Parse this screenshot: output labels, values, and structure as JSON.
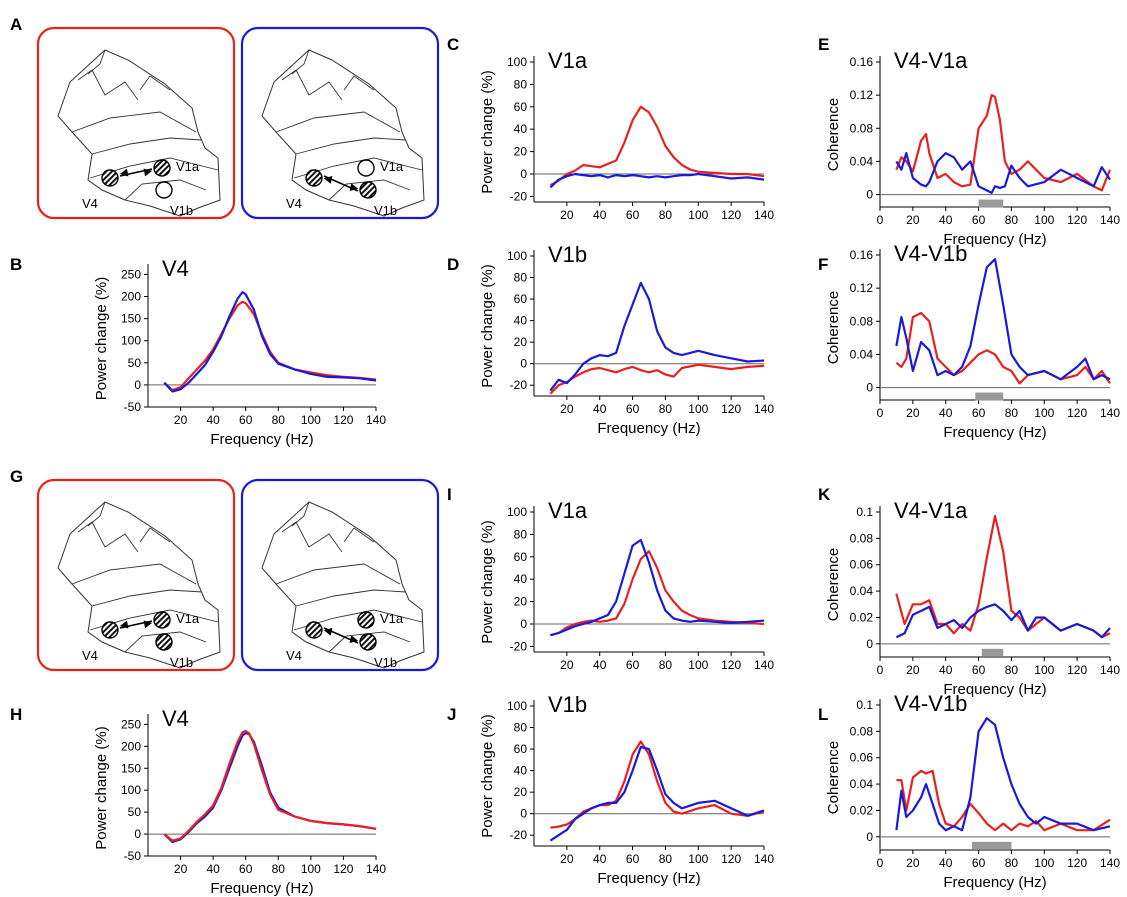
{
  "colors": {
    "red": "#e8211f",
    "blue": "#1a1adb",
    "gray": "#9a9a9a",
    "outline": "#333333"
  },
  "diagram_labels": {
    "v1a": "V1a",
    "v1b": "V1b",
    "v4": "V4"
  },
  "diagrams": [
    {
      "letter": "A",
      "left_state": "V1a-striped V1b-open",
      "right_state": "V1a-open V1b-striped"
    },
    {
      "letter": "G",
      "left_state": "both-striped",
      "right_state": "both-striped"
    }
  ],
  "chart_data": [
    {
      "letter": "B",
      "type": "line",
      "title": "V4",
      "xlabel": "Frequency (Hz)",
      "ylabel": "Power change (%)",
      "xlim": [
        0,
        140
      ],
      "ylim": [
        -50,
        260
      ],
      "xticks": [
        20,
        40,
        60,
        80,
        100,
        120,
        140
      ],
      "yticks": [
        -50,
        0,
        50,
        100,
        150,
        200,
        250
      ],
      "zero_line": true,
      "x": [
        10,
        15,
        20,
        25,
        30,
        35,
        40,
        45,
        50,
        55,
        58,
        60,
        65,
        70,
        75,
        80,
        90,
        100,
        110,
        120,
        130,
        140
      ],
      "series": [
        {
          "color": "red",
          "values": [
            5,
            -12,
            -5,
            15,
            35,
            55,
            80,
            115,
            150,
            180,
            188,
            185,
            160,
            115,
            75,
            50,
            35,
            28,
            22,
            18,
            16,
            12
          ]
        },
        {
          "color": "blue",
          "values": [
            5,
            -15,
            -10,
            5,
            25,
            45,
            75,
            110,
            155,
            195,
            210,
            205,
            170,
            110,
            70,
            48,
            35,
            25,
            18,
            17,
            15,
            10
          ]
        }
      ]
    },
    {
      "letter": "C",
      "type": "line",
      "title": "V1a",
      "xlabel": "",
      "ylabel": "Power change (%)",
      "xlim": [
        0,
        140
      ],
      "ylim": [
        -25,
        100
      ],
      "xticks": [
        20,
        40,
        60,
        80,
        100,
        120,
        140
      ],
      "yticks": [
        -20,
        0,
        20,
        40,
        60,
        80,
        100
      ],
      "zero_line": true,
      "x": [
        10,
        15,
        20,
        25,
        30,
        35,
        40,
        45,
        50,
        55,
        60,
        65,
        70,
        75,
        80,
        85,
        90,
        95,
        100,
        110,
        120,
        130,
        140
      ],
      "series": [
        {
          "color": "red",
          "values": [
            -10,
            -6,
            0,
            3,
            8,
            7,
            6,
            9,
            12,
            28,
            48,
            60,
            55,
            42,
            25,
            15,
            8,
            4,
            2,
            1,
            0,
            0,
            -2
          ]
        },
        {
          "color": "blue",
          "values": [
            -12,
            -5,
            -2,
            0,
            -1,
            -2,
            -1,
            -3,
            -1,
            -2,
            -1,
            -2,
            -3,
            -2,
            -3,
            -2,
            -1,
            -1,
            0,
            -2,
            -4,
            -3,
            -5
          ]
        }
      ]
    },
    {
      "letter": "D",
      "type": "line",
      "title": "V1b",
      "xlabel": "Frequency (Hz)",
      "ylabel": "Power change (%)",
      "xlim": [
        0,
        140
      ],
      "ylim": [
        -30,
        100
      ],
      "xticks": [
        20,
        40,
        60,
        80,
        100,
        120,
        140
      ],
      "yticks": [
        -20,
        0,
        20,
        40,
        60,
        80,
        100
      ],
      "zero_line": true,
      "x": [
        10,
        15,
        20,
        25,
        30,
        35,
        40,
        45,
        50,
        55,
        60,
        65,
        70,
        75,
        80,
        85,
        90,
        100,
        110,
        120,
        130,
        140
      ],
      "series": [
        {
          "color": "red",
          "values": [
            -28,
            -20,
            -17,
            -12,
            -8,
            -5,
            -4,
            -6,
            -8,
            -5,
            -3,
            -6,
            -8,
            -6,
            -10,
            -12,
            -4,
            -1,
            -3,
            -5,
            -3,
            -2
          ]
        },
        {
          "color": "blue",
          "values": [
            -25,
            -15,
            -18,
            -10,
            0,
            5,
            8,
            7,
            10,
            35,
            55,
            75,
            60,
            30,
            15,
            10,
            8,
            12,
            8,
            5,
            2,
            3
          ]
        }
      ]
    },
    {
      "letter": "E",
      "type": "line",
      "title": "V4-V1a",
      "xlabel": "Frequency (Hz)",
      "ylabel": "Coherence",
      "xlim": [
        0,
        140
      ],
      "ylim": [
        -0.015,
        0.16
      ],
      "xticks": [
        0,
        20,
        40,
        60,
        80,
        100,
        120,
        140
      ],
      "ytick_labels": [
        "0",
        "0.04",
        "0.08",
        "0.12",
        "0.16"
      ],
      "yticks": [
        0,
        0.04,
        0.08,
        0.12,
        0.16
      ],
      "zero_line": true,
      "band": [
        60,
        75
      ],
      "x": [
        10,
        13,
        16,
        20,
        25,
        28,
        30,
        35,
        40,
        45,
        50,
        55,
        60,
        65,
        68,
        70,
        73,
        76,
        80,
        85,
        90,
        100,
        110,
        120,
        130,
        135,
        140
      ],
      "series": [
        {
          "color": "red",
          "values": [
            0.03,
            0.045,
            0.04,
            0.028,
            0.065,
            0.073,
            0.05,
            0.02,
            0.025,
            0.015,
            0.01,
            0.012,
            0.08,
            0.095,
            0.12,
            0.118,
            0.09,
            0.04,
            0.025,
            0.03,
            0.04,
            0.02,
            0.015,
            0.025,
            0.01,
            0.005,
            0.03
          ]
        },
        {
          "color": "blue",
          "values": [
            0.04,
            0.03,
            0.05,
            0.02,
            0.012,
            0.01,
            0.015,
            0.04,
            0.05,
            0.045,
            0.03,
            0.04,
            0.01,
            0.005,
            0.002,
            0.01,
            0.008,
            0.01,
            0.035,
            0.02,
            0.01,
            0.015,
            0.03,
            0.02,
            0.01,
            0.033,
            0.018
          ]
        }
      ]
    },
    {
      "letter": "F",
      "type": "line",
      "title": "V4-V1b",
      "xlabel": "Frequency (Hz)",
      "ylabel": "Coherence",
      "xlim": [
        0,
        140
      ],
      "ylim": [
        -0.015,
        0.16
      ],
      "xticks": [
        0,
        20,
        40,
        60,
        80,
        100,
        120,
        140
      ],
      "ytick_labels": [
        "0",
        "0.04",
        "0.08",
        "0.12",
        "0.16"
      ],
      "yticks": [
        0,
        0.04,
        0.08,
        0.12,
        0.16
      ],
      "zero_line": true,
      "band": [
        58,
        75
      ],
      "x": [
        10,
        13,
        16,
        20,
        25,
        30,
        35,
        40,
        45,
        50,
        55,
        60,
        65,
        70,
        75,
        80,
        85,
        90,
        100,
        110,
        120,
        125,
        130,
        135,
        140
      ],
      "series": [
        {
          "color": "red",
          "values": [
            0.03,
            0.025,
            0.035,
            0.085,
            0.09,
            0.08,
            0.035,
            0.025,
            0.015,
            0.02,
            0.03,
            0.04,
            0.045,
            0.04,
            0.025,
            0.02,
            0.005,
            0.015,
            0.02,
            0.01,
            0.015,
            0.025,
            0.01,
            0.02,
            0.005
          ]
        },
        {
          "color": "blue",
          "values": [
            0.05,
            0.085,
            0.06,
            0.02,
            0.055,
            0.045,
            0.015,
            0.02,
            0.015,
            0.025,
            0.05,
            0.1,
            0.145,
            0.155,
            0.1,
            0.04,
            0.025,
            0.015,
            0.02,
            0.01,
            0.025,
            0.035,
            0.01,
            0.015,
            0.01
          ]
        }
      ]
    },
    {
      "letter": "H",
      "type": "line",
      "title": "V4",
      "xlabel": "Frequency (Hz)",
      "ylabel": "Power change (%)",
      "xlim": [
        0,
        140
      ],
      "ylim": [
        -50,
        260
      ],
      "xticks": [
        20,
        40,
        60,
        80,
        100,
        120,
        140
      ],
      "yticks": [
        -50,
        0,
        50,
        100,
        150,
        200,
        250
      ],
      "zero_line": true,
      "x": [
        10,
        15,
        20,
        25,
        30,
        35,
        40,
        45,
        50,
        55,
        58,
        60,
        62,
        65,
        70,
        75,
        80,
        90,
        100,
        110,
        120,
        130,
        140
      ],
      "series": [
        {
          "color": "blue",
          "values": [
            0,
            -18,
            -12,
            5,
            25,
            40,
            60,
            100,
            150,
            200,
            225,
            230,
            228,
            210,
            155,
            95,
            60,
            40,
            30,
            25,
            22,
            18,
            12
          ]
        },
        {
          "color": "red",
          "values": [
            0,
            -15,
            -10,
            8,
            28,
            45,
            65,
            105,
            160,
            210,
            232,
            235,
            230,
            205,
            145,
            90,
            55,
            40,
            30,
            25,
            22,
            18,
            12
          ]
        }
      ]
    },
    {
      "letter": "I",
      "type": "line",
      "title": "V1a",
      "xlabel": "",
      "ylabel": "Power change (%)",
      "xlim": [
        0,
        140
      ],
      "ylim": [
        -25,
        100
      ],
      "xticks": [
        20,
        40,
        60,
        80,
        100,
        120,
        140
      ],
      "yticks": [
        -20,
        0,
        20,
        40,
        60,
        80,
        100
      ],
      "zero_line": true,
      "x": [
        10,
        15,
        20,
        25,
        30,
        35,
        40,
        45,
        50,
        55,
        60,
        65,
        70,
        75,
        80,
        85,
        90,
        95,
        100,
        110,
        120,
        130,
        140
      ],
      "series": [
        {
          "color": "red",
          "values": [
            -10,
            -8,
            -3,
            0,
            2,
            3,
            2,
            3,
            5,
            18,
            40,
            58,
            65,
            50,
            30,
            20,
            12,
            8,
            5,
            3,
            2,
            1,
            0
          ]
        },
        {
          "color": "blue",
          "values": [
            -10,
            -8,
            -5,
            -2,
            0,
            2,
            5,
            8,
            20,
            45,
            70,
            75,
            55,
            30,
            12,
            5,
            3,
            2,
            3,
            2,
            1,
            2,
            3
          ]
        }
      ]
    },
    {
      "letter": "J",
      "type": "line",
      "title": "V1b",
      "xlabel": "Frequency (Hz)",
      "ylabel": "Power change (%)",
      "xlim": [
        0,
        140
      ],
      "ylim": [
        -30,
        100
      ],
      "xticks": [
        20,
        40,
        60,
        80,
        100,
        120,
        140
      ],
      "yticks": [
        -20,
        0,
        20,
        40,
        60,
        80,
        100
      ],
      "zero_line": true,
      "x": [
        10,
        15,
        20,
        25,
        30,
        35,
        40,
        45,
        50,
        55,
        60,
        65,
        70,
        75,
        80,
        85,
        90,
        100,
        110,
        120,
        130,
        140
      ],
      "series": [
        {
          "color": "red",
          "values": [
            -13,
            -12,
            -10,
            -5,
            2,
            5,
            8,
            8,
            12,
            30,
            55,
            67,
            55,
            30,
            10,
            2,
            0,
            5,
            8,
            0,
            -2,
            2
          ]
        },
        {
          "color": "blue",
          "values": [
            -25,
            -20,
            -15,
            -5,
            0,
            5,
            8,
            10,
            10,
            20,
            40,
            62,
            60,
            40,
            18,
            10,
            5,
            10,
            12,
            5,
            -2,
            3
          ]
        }
      ]
    },
    {
      "letter": "K",
      "type": "line",
      "title": "V4-V1a",
      "xlabel": "Frequency (Hz)",
      "ylabel": "Coherence",
      "xlim": [
        0,
        140
      ],
      "ylim": [
        -0.01,
        0.1
      ],
      "xticks": [
        0,
        20,
        40,
        60,
        80,
        100,
        120,
        140
      ],
      "ytick_labels": [
        "0",
        "0.02",
        "0.04",
        "0.06",
        "0.08",
        "0.1"
      ],
      "yticks": [
        0,
        0.02,
        0.04,
        0.06,
        0.08,
        0.1
      ],
      "zero_line": true,
      "band": [
        62,
        75
      ],
      "x": [
        10,
        15,
        20,
        25,
        30,
        35,
        40,
        45,
        50,
        55,
        60,
        65,
        70,
        75,
        80,
        85,
        90,
        95,
        100,
        110,
        120,
        130,
        135,
        140
      ],
      "series": [
        {
          "color": "red",
          "values": [
            0.038,
            0.015,
            0.03,
            0.03,
            0.033,
            0.015,
            0.015,
            0.008,
            0.015,
            0.01,
            0.03,
            0.065,
            0.097,
            0.07,
            0.025,
            0.02,
            0.01,
            0.015,
            0.02,
            0.01,
            0.015,
            0.01,
            0.005,
            0.008
          ]
        },
        {
          "color": "blue",
          "values": [
            0.005,
            0.008,
            0.022,
            0.025,
            0.028,
            0.012,
            0.015,
            0.018,
            0.012,
            0.02,
            0.025,
            0.028,
            0.03,
            0.025,
            0.018,
            0.025,
            0.01,
            0.02,
            0.02,
            0.01,
            0.015,
            0.01,
            0.005,
            0.012
          ]
        }
      ]
    },
    {
      "letter": "L",
      "type": "line",
      "title": "V4-V1b",
      "xlabel": "Frequency (Hz)",
      "ylabel": "Coherence",
      "xlim": [
        0,
        140
      ],
      "ylim": [
        -0.01,
        0.1
      ],
      "xticks": [
        0,
        20,
        40,
        60,
        80,
        100,
        120,
        140
      ],
      "ytick_labels": [
        "0",
        "0.02",
        "0.04",
        "0.06",
        "0.08",
        "0.1"
      ],
      "yticks": [
        0,
        0.02,
        0.04,
        0.06,
        0.08,
        0.1
      ],
      "zero_line": true,
      "band": [
        56,
        80
      ],
      "x": [
        10,
        13,
        16,
        20,
        25,
        28,
        32,
        36,
        40,
        45,
        50,
        55,
        60,
        65,
        70,
        75,
        80,
        85,
        90,
        95,
        100,
        110,
        120,
        130,
        140
      ],
      "series": [
        {
          "color": "red",
          "values": [
            0.043,
            0.043,
            0.02,
            0.045,
            0.05,
            0.048,
            0.05,
            0.025,
            0.01,
            0.008,
            0.015,
            0.025,
            0.018,
            0.01,
            0.005,
            0.01,
            0.005,
            0.01,
            0.008,
            0.012,
            0.005,
            0.01,
            0.005,
            0.005,
            0.013
          ]
        },
        {
          "color": "blue",
          "values": [
            0.005,
            0.035,
            0.015,
            0.02,
            0.03,
            0.04,
            0.025,
            0.01,
            0.005,
            0.008,
            0.005,
            0.03,
            0.08,
            0.09,
            0.085,
            0.06,
            0.04,
            0.025,
            0.015,
            0.01,
            0.015,
            0.01,
            0.01,
            0.005,
            0.008
          ]
        }
      ]
    }
  ]
}
